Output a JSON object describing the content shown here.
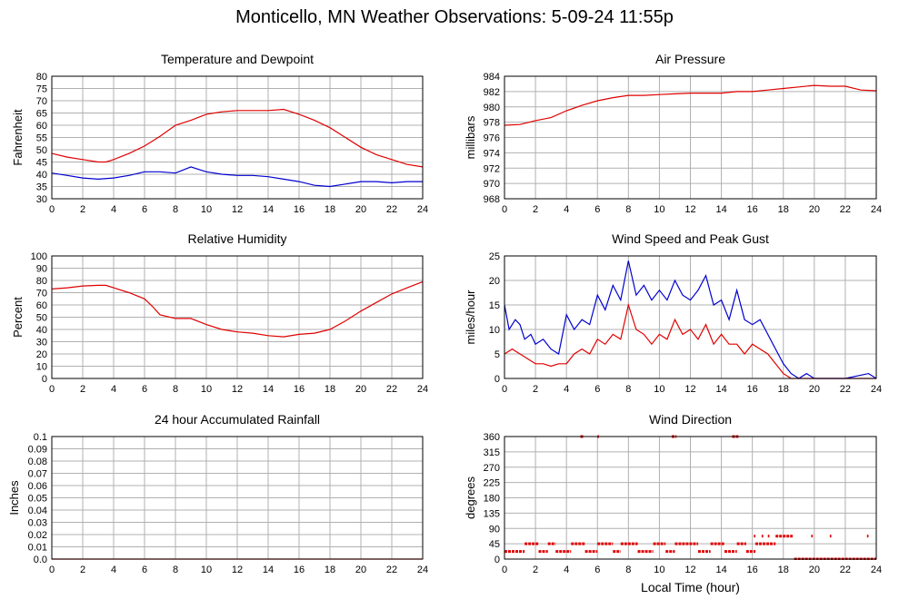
{
  "page_title": "Monticello, MN Weather Observations: 5-09-24 11:55p",
  "shared_xlabel": "Local Time (hour)",
  "colors": {
    "red": "#e00000",
    "blue": "#0000d0",
    "grid": "#b0b0b0"
  },
  "chart_data": [
    {
      "id": "temp",
      "type": "line",
      "title": "Temperature and Dewpoint",
      "ylabel": "Fahrenheit",
      "xlim": [
        0,
        24
      ],
      "ylim": [
        30,
        80
      ],
      "xticks": [
        0,
        2,
        4,
        6,
        8,
        10,
        12,
        14,
        16,
        18,
        20,
        22,
        24
      ],
      "yticks": [
        30,
        35,
        40,
        45,
        50,
        55,
        60,
        65,
        70,
        75,
        80
      ],
      "grid": true,
      "series": [
        {
          "color": "#e00000",
          "mode": "line",
          "points": [
            [
              0,
              48.5
            ],
            [
              1,
              47
            ],
            [
              2,
              46
            ],
            [
              3,
              45
            ],
            [
              3.5,
              45
            ],
            [
              4,
              46
            ],
            [
              5,
              48.5
            ],
            [
              6,
              51.5
            ],
            [
              7,
              55.5
            ],
            [
              8,
              60
            ],
            [
              9,
              62
            ],
            [
              10,
              64.5
            ],
            [
              11,
              65.5
            ],
            [
              12,
              66
            ],
            [
              13,
              66
            ],
            [
              14,
              66
            ],
            [
              15,
              66.5
            ],
            [
              16,
              64.5
            ],
            [
              17,
              62
            ],
            [
              18,
              59
            ],
            [
              19,
              55
            ],
            [
              20,
              51
            ],
            [
              21,
              48
            ],
            [
              22,
              46
            ],
            [
              23,
              44
            ],
            [
              24,
              43
            ]
          ]
        },
        {
          "color": "#0000d0",
          "mode": "line",
          "points": [
            [
              0,
              40.5
            ],
            [
              1,
              39.5
            ],
            [
              2,
              38.5
            ],
            [
              3,
              38
            ],
            [
              4,
              38.5
            ],
            [
              5,
              39.5
            ],
            [
              6,
              41
            ],
            [
              7,
              41
            ],
            [
              8,
              40.5
            ],
            [
              9,
              43
            ],
            [
              10,
              41
            ],
            [
              11,
              40
            ],
            [
              12,
              39.5
            ],
            [
              13,
              39.5
            ],
            [
              14,
              39
            ],
            [
              15,
              38
            ],
            [
              16,
              37
            ],
            [
              17,
              35.5
            ],
            [
              18,
              35
            ],
            [
              19,
              36
            ],
            [
              20,
              37
            ],
            [
              21,
              37
            ],
            [
              22,
              36.5
            ],
            [
              23,
              37
            ],
            [
              24,
              37
            ]
          ]
        }
      ]
    },
    {
      "id": "pressure",
      "type": "line",
      "title": "Air Pressure",
      "ylabel": "millibars",
      "xlim": [
        0,
        24
      ],
      "ylim": [
        968,
        984
      ],
      "xticks": [
        0,
        2,
        4,
        6,
        8,
        10,
        12,
        14,
        16,
        18,
        20,
        22,
        24
      ],
      "yticks": [
        968,
        970,
        972,
        974,
        976,
        978,
        980,
        982,
        984
      ],
      "grid": true,
      "series": [
        {
          "color": "#e00000",
          "mode": "line",
          "points": [
            [
              0,
              977.6
            ],
            [
              1,
              977.7
            ],
            [
              2,
              978.2
            ],
            [
              3,
              978.6
            ],
            [
              4,
              979.5
            ],
            [
              5,
              980.2
            ],
            [
              6,
              980.8
            ],
            [
              7,
              981.2
            ],
            [
              8,
              981.5
            ],
            [
              9,
              981.5
            ],
            [
              10,
              981.6
            ],
            [
              11,
              981.7
            ],
            [
              12,
              981.8
            ],
            [
              13,
              981.8
            ],
            [
              14,
              981.8
            ],
            [
              15,
              982
            ],
            [
              16,
              982
            ],
            [
              17,
              982.2
            ],
            [
              18,
              982.4
            ],
            [
              19,
              982.6
            ],
            [
              20,
              982.8
            ],
            [
              21,
              982.7
            ],
            [
              22,
              982.7
            ],
            [
              23,
              982.2
            ],
            [
              24,
              982.1
            ]
          ]
        }
      ]
    },
    {
      "id": "humidity",
      "type": "line",
      "title": "Relative Humidity",
      "ylabel": "Percent",
      "xlim": [
        0,
        24
      ],
      "ylim": [
        0,
        100
      ],
      "xticks": [
        0,
        2,
        4,
        6,
        8,
        10,
        12,
        14,
        16,
        18,
        20,
        22,
        24
      ],
      "yticks": [
        0,
        10,
        20,
        30,
        40,
        50,
        60,
        70,
        80,
        90,
        100
      ],
      "grid": true,
      "series": [
        {
          "color": "#e00000",
          "mode": "line",
          "points": [
            [
              0,
              73
            ],
            [
              1,
              74
            ],
            [
              2,
              75.5
            ],
            [
              3,
              76
            ],
            [
              3.5,
              76
            ],
            [
              4,
              74
            ],
            [
              5,
              70
            ],
            [
              6,
              65
            ],
            [
              6.5,
              59
            ],
            [
              7,
              52
            ],
            [
              8,
              49
            ],
            [
              9,
              49
            ],
            [
              10,
              44
            ],
            [
              11,
              40
            ],
            [
              12,
              38
            ],
            [
              13,
              37
            ],
            [
              14,
              35
            ],
            [
              15,
              34
            ],
            [
              16,
              36
            ],
            [
              17,
              37
            ],
            [
              18,
              40
            ],
            [
              19,
              47
            ],
            [
              20,
              55
            ],
            [
              21,
              62
            ],
            [
              22,
              69
            ],
            [
              23,
              74
            ],
            [
              24,
              79
            ]
          ]
        }
      ]
    },
    {
      "id": "wind",
      "type": "line",
      "title": "Wind Speed and Peak Gust",
      "ylabel": "miles/hour",
      "xlim": [
        0,
        24
      ],
      "ylim": [
        0,
        25
      ],
      "xticks": [
        0,
        2,
        4,
        6,
        8,
        10,
        12,
        14,
        16,
        18,
        20,
        22,
        24
      ],
      "yticks": [
        0,
        5,
        10,
        15,
        20,
        25
      ],
      "grid": true,
      "series": [
        {
          "color": "#0000d0",
          "mode": "line",
          "points": [
            [
              0,
              15
            ],
            [
              0.3,
              10
            ],
            [
              0.7,
              12
            ],
            [
              1,
              11
            ],
            [
              1.3,
              8
            ],
            [
              1.7,
              9
            ],
            [
              2,
              7
            ],
            [
              2.5,
              8
            ],
            [
              3,
              6
            ],
            [
              3.5,
              5
            ],
            [
              4,
              13
            ],
            [
              4.5,
              10
            ],
            [
              5,
              12
            ],
            [
              5.5,
              11
            ],
            [
              6,
              17
            ],
            [
              6.5,
              14
            ],
            [
              7,
              19
            ],
            [
              7.5,
              16
            ],
            [
              8,
              24
            ],
            [
              8.5,
              17
            ],
            [
              9,
              19
            ],
            [
              9.5,
              16
            ],
            [
              10,
              18
            ],
            [
              10.5,
              16
            ],
            [
              11,
              20
            ],
            [
              11.5,
              17
            ],
            [
              12,
              16
            ],
            [
              12.5,
              18
            ],
            [
              13,
              21
            ],
            [
              13.5,
              15
            ],
            [
              14,
              16
            ],
            [
              14.5,
              12
            ],
            [
              15,
              18
            ],
            [
              15.5,
              12
            ],
            [
              16,
              11
            ],
            [
              16.5,
              12
            ],
            [
              17,
              9
            ],
            [
              17.5,
              6
            ],
            [
              18,
              3
            ],
            [
              18.5,
              1
            ],
            [
              19,
              0
            ],
            [
              19.5,
              1
            ],
            [
              20,
              0
            ],
            [
              21,
              0
            ],
            [
              22,
              0
            ],
            [
              23.5,
              1
            ],
            [
              24,
              0
            ]
          ]
        },
        {
          "color": "#e00000",
          "mode": "line",
          "points": [
            [
              0,
              5
            ],
            [
              0.5,
              6
            ],
            [
              1,
              5
            ],
            [
              1.5,
              4
            ],
            [
              2,
              3
            ],
            [
              2.5,
              3
            ],
            [
              3,
              2.5
            ],
            [
              3.5,
              3
            ],
            [
              4,
              3
            ],
            [
              4.5,
              5
            ],
            [
              5,
              6
            ],
            [
              5.5,
              5
            ],
            [
              6,
              8
            ],
            [
              6.5,
              7
            ],
            [
              7,
              9
            ],
            [
              7.5,
              8
            ],
            [
              8,
              15
            ],
            [
              8.5,
              10
            ],
            [
              9,
              9
            ],
            [
              9.5,
              7
            ],
            [
              10,
              9
            ],
            [
              10.5,
              8
            ],
            [
              11,
              12
            ],
            [
              11.5,
              9
            ],
            [
              12,
              10
            ],
            [
              12.5,
              8
            ],
            [
              13,
              11
            ],
            [
              13.5,
              7
            ],
            [
              14,
              9
            ],
            [
              14.5,
              7
            ],
            [
              15,
              7
            ],
            [
              15.5,
              5
            ],
            [
              16,
              7
            ],
            [
              16.5,
              6
            ],
            [
              17,
              5
            ],
            [
              17.5,
              3
            ],
            [
              18,
              1
            ],
            [
              18.5,
              0
            ],
            [
              19,
              0
            ],
            [
              24,
              0
            ]
          ]
        }
      ]
    },
    {
      "id": "rain",
      "type": "line",
      "title": "24 hour Accumulated Rainfall",
      "ylabel": "Inches",
      "xlim": [
        0,
        24
      ],
      "ylim": [
        0,
        0.1
      ],
      "xticks": [
        0,
        2,
        4,
        6,
        8,
        10,
        12,
        14,
        16,
        18,
        20,
        22,
        24
      ],
      "yticks": [
        0.0,
        0.01,
        0.02,
        0.03,
        0.04,
        0.05,
        0.06,
        0.07,
        0.08,
        0.09,
        0.1
      ],
      "ytick_labels": [
        "0.0",
        "0.01",
        "0.02",
        "0.03",
        "0.04",
        "0.05",
        "0.06",
        "0.07",
        "0.08",
        "0.09",
        "0.1"
      ],
      "grid": true,
      "series": [
        {
          "color": "#e00000",
          "mode": "line",
          "points": [
            [
              0,
              0
            ],
            [
              24,
              0
            ]
          ]
        }
      ]
    },
    {
      "id": "direction",
      "type": "scatter",
      "title": "Wind Direction",
      "ylabel": "degrees",
      "xlim": [
        0,
        24
      ],
      "ylim": [
        0,
        360
      ],
      "xticks": [
        0,
        2,
        4,
        6,
        8,
        10,
        12,
        14,
        16,
        18,
        20,
        22,
        24
      ],
      "yticks": [
        0,
        45,
        90,
        135,
        180,
        225,
        270,
        315,
        360
      ],
      "grid": true,
      "series": [
        {
          "color": "#e00000",
          "mode": "segments",
          "segments": [
            [
              0,
              1.3,
              22.5
            ],
            [
              1.3,
              2.2,
              45
            ],
            [
              2.2,
              2.8,
              22.5
            ],
            [
              2.8,
              3.3,
              45
            ],
            [
              3.3,
              4.3,
              22.5
            ],
            [
              4.3,
              5.2,
              45
            ],
            [
              5.2,
              6,
              22.5
            ],
            [
              6,
              7,
              45
            ],
            [
              7,
              7.5,
              22.5
            ],
            [
              7.5,
              8.6,
              45
            ],
            [
              8.6,
              9.6,
              22.5
            ],
            [
              9.6,
              10.4,
              45
            ],
            [
              10.4,
              11,
              22.5
            ],
            [
              11,
              12.5,
              45
            ],
            [
              12.5,
              13.3,
              22.5
            ],
            [
              13.3,
              14.2,
              45
            ],
            [
              14.2,
              15,
              22.5
            ],
            [
              15,
              15.6,
              45
            ],
            [
              15.6,
              16.2,
              22.5
            ],
            [
              16.2,
              17.5,
              45
            ],
            [
              17.5,
              18.6,
              67.5
            ],
            [
              18.7,
              24,
              0
            ],
            [
              4.9,
              5.1,
              360
            ],
            [
              6,
              6.1,
              360
            ],
            [
              10.8,
              11.1,
              360
            ],
            [
              14.7,
              15.1,
              360
            ],
            [
              16.1,
              16.2,
              67.5
            ],
            [
              16.6,
              16.7,
              67.5
            ],
            [
              17,
              17.1,
              67.5
            ],
            [
              19.8,
              19.9,
              67.5
            ],
            [
              21,
              21.1,
              67.5
            ],
            [
              23.4,
              23.5,
              67.5
            ]
          ]
        }
      ]
    }
  ]
}
